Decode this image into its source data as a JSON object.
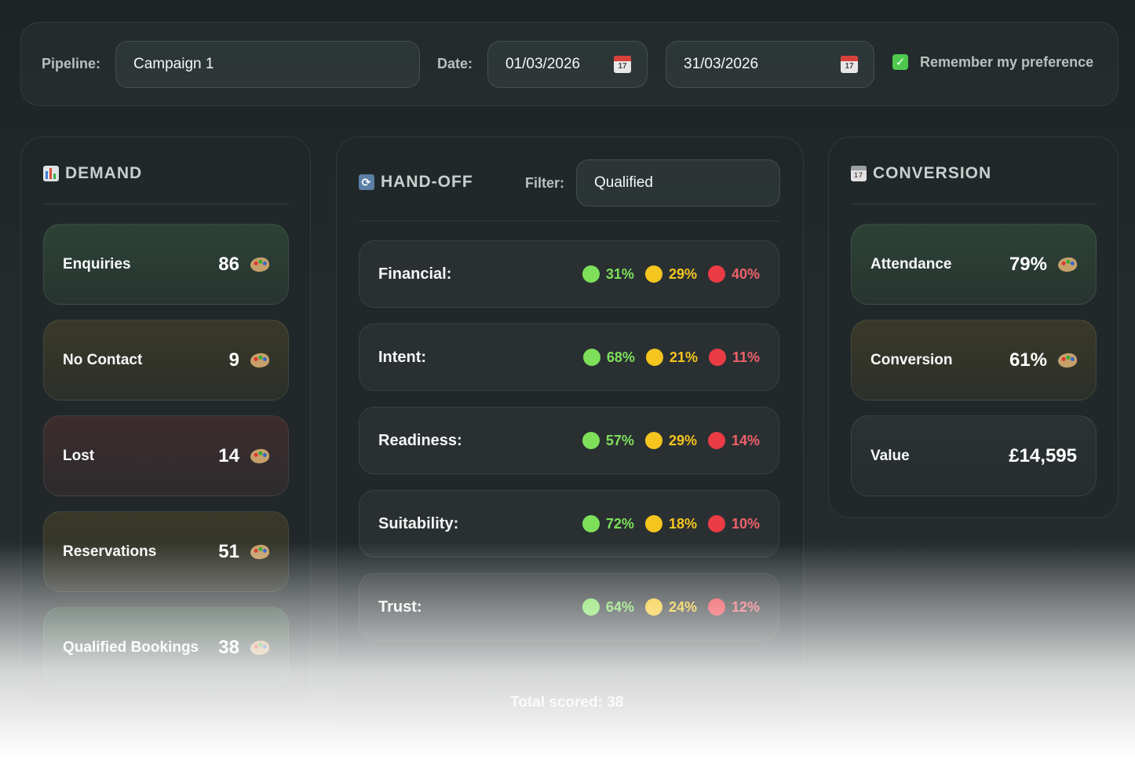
{
  "filters": {
    "pipeline_label": "Pipeline:",
    "pipeline_value": "Campaign 1",
    "date_label": "Date:",
    "date_from": "01/03/2026",
    "date_to": "31/03/2026",
    "calendar_day": "17",
    "remember_label": "Remember my preference",
    "remember_checked": true
  },
  "demand": {
    "title": "DEMAND",
    "icon": "bar-chart-icon",
    "cards": [
      {
        "label": "Enquiries",
        "value": "86",
        "tone": "green"
      },
      {
        "label": "No Contact",
        "value": "9",
        "tone": "olive"
      },
      {
        "label": "Lost",
        "value": "14",
        "tone": "red"
      },
      {
        "label": "Reservations",
        "value": "51",
        "tone": "olive"
      },
      {
        "label": "Qualified Bookings",
        "value": "38",
        "tone": "green"
      }
    ]
  },
  "handoff": {
    "title": "HAND-OFF",
    "icon": "refresh-icon",
    "filter_label": "Filter:",
    "filter_value": "Qualified",
    "rows": [
      {
        "label": "Financial:",
        "green": "31%",
        "yellow": "29%",
        "red": "40%"
      },
      {
        "label": "Intent:",
        "green": "68%",
        "yellow": "21%",
        "red": "11%"
      },
      {
        "label": "Readiness:",
        "green": "57%",
        "yellow": "29%",
        "red": "14%"
      },
      {
        "label": "Suitability:",
        "green": "72%",
        "yellow": "18%",
        "red": "10%"
      },
      {
        "label": "Trust:",
        "green": "64%",
        "yellow": "24%",
        "red": "12%"
      }
    ],
    "total": "Total scored: 38"
  },
  "conversion": {
    "title": "CONVERSION",
    "icon": "calendar-icon",
    "cards": [
      {
        "label": "Attendance",
        "value": "79%",
        "tone": "green"
      },
      {
        "label": "Conversion",
        "value": "61%",
        "tone": "olive"
      },
      {
        "label": "Value",
        "value": "£14,595",
        "tone": "grey"
      }
    ]
  },
  "colors": {
    "green": "#7ee05a",
    "yellow": "#f5c51f",
    "red": "#eb3b45",
    "checkbox": "#4ec94e"
  }
}
